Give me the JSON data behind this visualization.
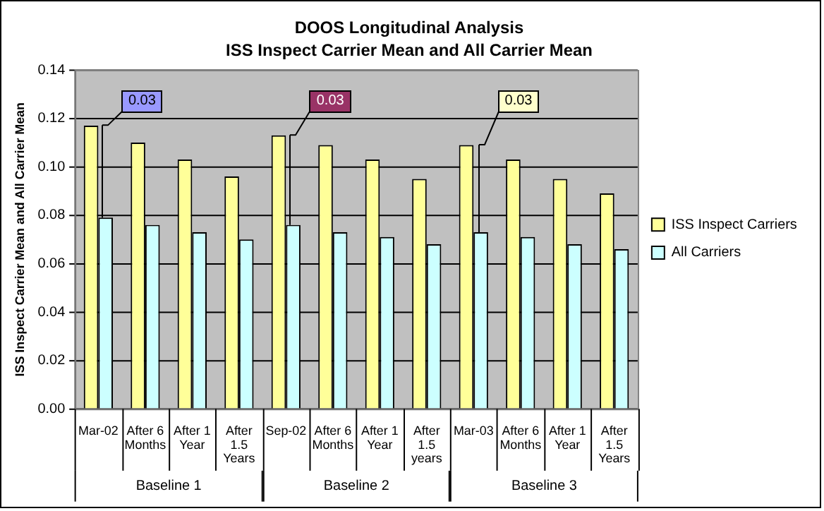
{
  "chart_data": {
    "type": "bar",
    "title": "DOOS Longitudinal Analysis",
    "subtitle": "ISS Inspect Carrier Mean and All Carrier Mean",
    "ylabel": "ISS Inspect Carrier Mean and All Carrier Mean",
    "categories": [
      "Mar-02",
      "After 6 Months",
      "After 1 Year",
      "After 1.5 Years",
      "Sep-02",
      "After 6 Months",
      "After 1 Year",
      "After 1.5 years",
      "Mar-03",
      "After 6 Months",
      "After 1 Year",
      "After 1.5 Years"
    ],
    "series": [
      {
        "name": "ISS Inspect Carriers",
        "color": "#ffff99",
        "values": [
          0.117,
          0.11,
          0.103,
          0.096,
          0.113,
          0.109,
          0.103,
          0.095,
          0.109,
          0.103,
          0.095,
          0.089
        ]
      },
      {
        "name": "All Carriers",
        "color": "#ccffff",
        "values": [
          0.079,
          0.076,
          0.073,
          0.07,
          0.076,
          0.073,
          0.071,
          0.068,
          0.073,
          0.071,
          0.068,
          0.066
        ]
      }
    ],
    "ylim": [
      0,
      0.14
    ],
    "yticks": [
      {
        "value": 0,
        "label": "0.00"
      },
      {
        "value": 0.02,
        "label": "0.02"
      },
      {
        "value": 0.04,
        "label": "0.04"
      },
      {
        "value": 0.06,
        "label": "0.06"
      },
      {
        "value": 0.08,
        "label": "0.08"
      },
      {
        "value": 0.1,
        "label": "0.10"
      },
      {
        "value": 0.12,
        "label": "0.12"
      },
      {
        "value": 0.14,
        "label": "0.14"
      }
    ],
    "grid": "y",
    "legend": "right",
    "annotations": [
      "Baseline 1",
      "Baseline 2",
      "Baseline 3",
      {
        "text": "0.03",
        "x": "Mar-02",
        "y": 0.117
      },
      {
        "text": "0.03",
        "x": "Sep-02",
        "y": 0.113
      },
      {
        "text": "0.03",
        "x": "Mar-03",
        "y": 0.109
      }
    ]
  }
}
